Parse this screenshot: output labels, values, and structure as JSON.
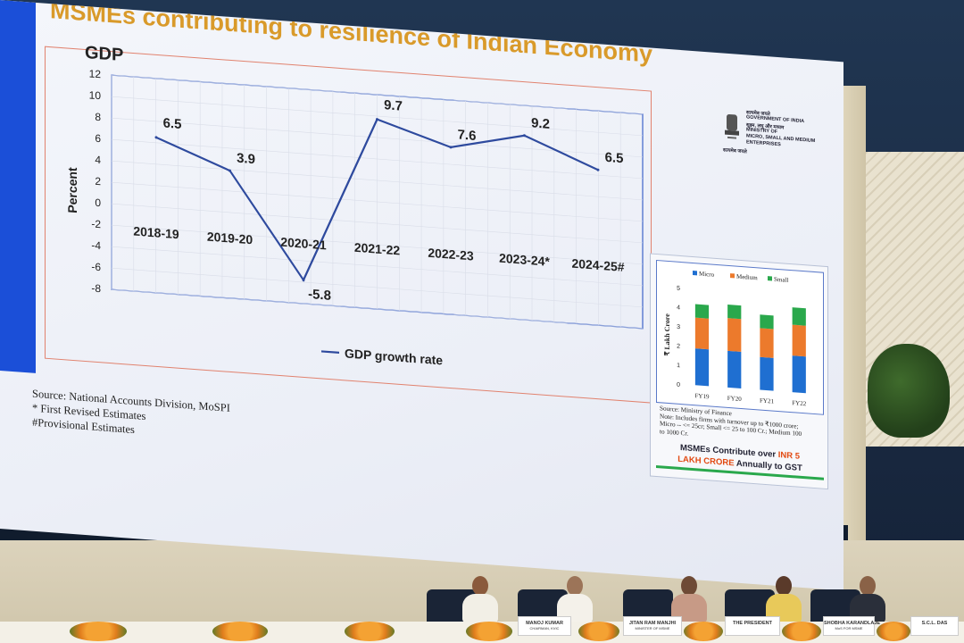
{
  "slide": {
    "title": "MSMEs contributing to resilience of Indian Economy",
    "logo": {
      "lines": [
        "सत्यमेव जयते",
        "GOVERNMENT OF INDIA",
        "सूक्ष्म, लघु और मध्यम",
        "MINISTRY OF",
        "MICRO, SMALL AND MEDIUM",
        "ENTERPRISES"
      ],
      "tagline": "सत्यमेव जयते"
    },
    "notes": [
      "Source: National Accounts Division, MoSPI",
      "* First Revised Estimates",
      "#Provisional Estimates"
    ]
  },
  "chart_data": [
    {
      "type": "line",
      "title": "GDP",
      "ylabel": "Percent",
      "xlabel": "",
      "ylim": [
        -8,
        12
      ],
      "yticks": [
        12,
        10,
        8,
        6,
        4,
        2,
        0,
        -2,
        -4,
        -6,
        -8
      ],
      "grid": true,
      "legend_position": "bottom",
      "categories": [
        "2018-19",
        "2019-20",
        "2020-21",
        "2021-22",
        "2022-23",
        "2023-24*",
        "2024-25#"
      ],
      "series": [
        {
          "name": "GDP growth rate",
          "values": [
            6.5,
            3.9,
            -5.8,
            9.7,
            7.6,
            9.2,
            6.5
          ],
          "color": "#2e4a9e"
        }
      ],
      "data_labels": [
        "6.5",
        "3.9",
        "-5.8",
        "9.7",
        "7.6",
        "9.2",
        "6.5"
      ]
    },
    {
      "type": "bar",
      "stacked": true,
      "ylabel": "₹ Lakh Crore",
      "ylim": [
        0,
        5
      ],
      "yticks": [
        0,
        1,
        2,
        3,
        4,
        5
      ],
      "legend_position": "top",
      "categories": [
        "FY19",
        "FY20",
        "FY21",
        "FY22"
      ],
      "series": [
        {
          "name": "Micro",
          "values": [
            1.9,
            1.9,
            1.7,
            1.9
          ],
          "color": "#1f6fd1"
        },
        {
          "name": "Medium",
          "values": [
            1.6,
            1.7,
            1.5,
            1.6
          ],
          "color": "#ec7a2c"
        },
        {
          "name": "Small",
          "values": [
            0.7,
            0.7,
            0.7,
            0.9
          ],
          "color": "#2aa84c"
        }
      ],
      "notes": [
        "Source: Ministry of Finance",
        "Note: Includes firms with turnover up to ₹1000 crore;",
        "Micro -- <= 25cr; Small <= 25 to 100 Cr.; Medium 100",
        "to 1000 Cr."
      ],
      "callout": {
        "text": "MSMEs Contribute over ",
        "highlight1": "INR 5",
        "highlight2": "LAKH CRORE",
        "tail": " Annually to GST"
      }
    }
  ],
  "panel": {
    "nameplates": [
      "MANOJ KUMAR",
      "JITAN RAM MANJHI",
      "THE PRESIDENT",
      "SHOBHA KARANDLAJE",
      "S.C.L. DAS"
    ],
    "nameplate_subtitles": [
      "CHAIRMAN, KVIC",
      "MINISTER OF MSME",
      "",
      "MoS FOR MSME",
      ""
    ]
  }
}
